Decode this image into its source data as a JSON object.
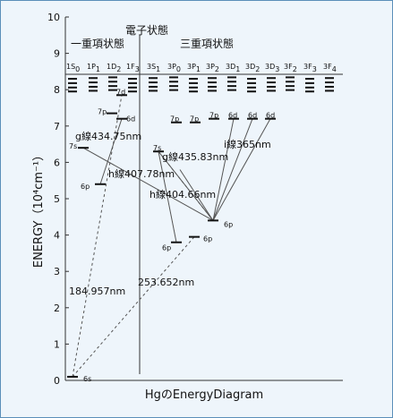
{
  "title": "HgのEnergyDiagram",
  "yaxis": {
    "label": "ENERGY（10⁴cm⁻¹）",
    "min": 0,
    "max": 10,
    "ticks": [
      "0",
      "1",
      "2",
      "3",
      "4",
      "5",
      "6",
      "7",
      "8",
      "9",
      "10"
    ]
  },
  "headers": {
    "electronic_states": "電子状態",
    "singlet": "一重項状態",
    "triplet": "三重項状態"
  },
  "terms": [
    {
      "main": "1S",
      "sub": "0"
    },
    {
      "main": "1P",
      "sub": "1"
    },
    {
      "main": "1D",
      "sub": "2"
    },
    {
      "main": "1F",
      "sub": "3"
    },
    {
      "main": "3S",
      "sub": "1"
    },
    {
      "main": "3P",
      "sub": "0"
    },
    {
      "main": "3P",
      "sub": "1"
    },
    {
      "main": "3P",
      "sub": "2"
    },
    {
      "main": "3D",
      "sub": "1"
    },
    {
      "main": "3D",
      "sub": "2"
    },
    {
      "main": "3D",
      "sub": "3"
    },
    {
      "main": "3F",
      "sub": "2"
    },
    {
      "main": "3F",
      "sub": "3"
    },
    {
      "main": "3F",
      "sub": "4"
    }
  ],
  "levels": [
    {
      "label": "6s",
      "energy": 0.1
    },
    {
      "label": "7s",
      "energy": 6.4
    },
    {
      "label": "6p",
      "energy": 5.4
    },
    {
      "label": "7p",
      "energy": 7.35
    },
    {
      "label": "6d",
      "energy": 7.2
    },
    {
      "label": "7d",
      "energy": 7.85
    },
    {
      "label": "7s",
      "energy": 6.3
    },
    {
      "label": "6p",
      "energy": 3.8
    },
    {
      "label": "6p",
      "energy": 3.95
    },
    {
      "label": "6p",
      "energy": 4.4
    },
    {
      "label": "7p",
      "energy": 7.1
    },
    {
      "label": "7p",
      "energy": 7.1
    },
    {
      "label": "7p",
      "energy": 7.2
    },
    {
      "label": "6d",
      "energy": 7.2
    },
    {
      "label": "6d",
      "energy": 7.2
    },
    {
      "label": "6d",
      "energy": 7.2
    }
  ],
  "transitions": [
    {
      "label": "184.957nm"
    },
    {
      "label": "253.652nm"
    },
    {
      "label": "g線434.75nm"
    },
    {
      "label": "h線407.78nm"
    },
    {
      "label": "g線435.83nm"
    },
    {
      "label": "h線404.66nm"
    },
    {
      "label": "i線365nm"
    }
  ]
}
